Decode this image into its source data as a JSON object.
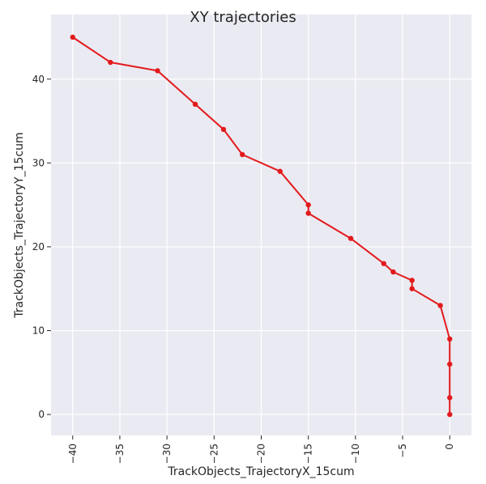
{
  "chart_data": {
    "type": "line",
    "title": "XY trajectories",
    "xlabel": "TrackObjects_TrajectoryX_15cum",
    "ylabel": "TrackObjects_TrajectoryY_15cum",
    "xlim": [
      -42.3,
      2.3
    ],
    "ylim": [
      -2.5,
      47.7
    ],
    "xticks": [
      -40,
      -35,
      -30,
      -25,
      -20,
      -15,
      -10,
      -5,
      0
    ],
    "yticks": [
      0,
      10,
      20,
      30,
      40
    ],
    "xtick_labels": [
      "−40",
      "−35",
      "−30",
      "−25",
      "−20",
      "−15",
      "−10",
      "−5",
      "0"
    ],
    "ytick_labels": [
      "0",
      "10",
      "20",
      "30",
      "40"
    ],
    "grid": true,
    "background": "#eaeaf2",
    "series": [
      {
        "color": "#e31a1c",
        "x": [
          0,
          0,
          0,
          0,
          -1,
          -4,
          -4,
          -6,
          -7,
          -10.5,
          -15,
          -15,
          -18,
          -22,
          -24,
          -27,
          -31,
          -36,
          -40
        ],
        "y": [
          0,
          2,
          6,
          9,
          13,
          15,
          16,
          17,
          18,
          21,
          24,
          25,
          29,
          31,
          34,
          37,
          41,
          42,
          45
        ]
      }
    ]
  }
}
